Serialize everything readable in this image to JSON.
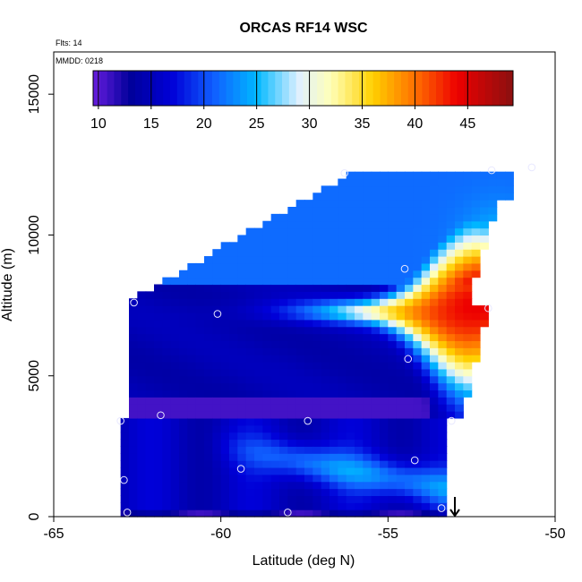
{
  "chart_data": {
    "type": "heatmap",
    "title": "ORCAS RF14 WSC",
    "flights_note": "Flts: 14",
    "date_note": "MMDD: 0218",
    "xlabel": "Latitude (deg N)",
    "ylabel": "Altitude (m)",
    "xlim": [
      -65,
      -50
    ],
    "ylim": [
      0,
      16500
    ],
    "x_ticks": [
      -65,
      -60,
      -55,
      -50
    ],
    "y_ticks": [
      0,
      5000,
      10000,
      15000
    ],
    "colorbar": {
      "range": [
        9.5,
        49.3
      ],
      "ticks": [
        10,
        15,
        20,
        25,
        30,
        35,
        40,
        45
      ],
      "colors": [
        "#6a1ee0",
        "#00009a",
        "#0000d8",
        "#1060ff",
        "#00b8ff",
        "#dff0ff",
        "#ffffb8",
        "#ffd000",
        "#ff7000",
        "#ee0000",
        "#8a1010"
      ],
      "color_positions": [
        9.5,
        13,
        17,
        21,
        25,
        29,
        32,
        36,
        40,
        44,
        49.3
      ]
    },
    "coverage": {
      "upper_block_lat": [
        -62.7,
        -51.2
      ],
      "upper_block_top_alt": [
        7700,
        12300
      ],
      "upper_block_bottom_alt": 3500,
      "lower_block_lat": [
        -63.0,
        -53.2
      ],
      "lower_block_alt": [
        0,
        3500
      ],
      "jet_max": {
        "lat": -52.5,
        "alt": 7300,
        "value": 46
      }
    },
    "observations": [
      {
        "lat": -56.3,
        "alt": 12200
      },
      {
        "lat": -51.9,
        "alt": 12300
      },
      {
        "lat": -50.7,
        "alt": 12400
      },
      {
        "lat": -54.5,
        "alt": 8800
      },
      {
        "lat": -62.6,
        "alt": 7600
      },
      {
        "lat": -60.1,
        "alt": 7200
      },
      {
        "lat": -52.0,
        "alt": 7400
      },
      {
        "lat": -54.4,
        "alt": 5600
      },
      {
        "lat": -61.8,
        "alt": 3600
      },
      {
        "lat": -57.4,
        "alt": 3400
      },
      {
        "lat": -53.1,
        "alt": 3400
      },
      {
        "lat": -63.0,
        "alt": 3400
      },
      {
        "lat": -54.2,
        "alt": 2000
      },
      {
        "lat": -59.4,
        "alt": 1700
      },
      {
        "lat": -62.9,
        "alt": 1300
      },
      {
        "lat": -53.4,
        "alt": 300
      },
      {
        "lat": -62.8,
        "alt": 150
      },
      {
        "lat": -58.0,
        "alt": 150
      }
    ],
    "marker_arrow": {
      "lat": -53.0,
      "alt_from": 700,
      "alt_to": 0
    }
  }
}
